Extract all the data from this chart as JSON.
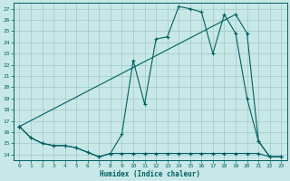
{
  "xlabel": "Humidex (Indice chaleur)",
  "bg_color": "#c8e8e8",
  "grid_color": "#a0c8c8",
  "line_color": "#006060",
  "xlim_min": -0.5,
  "xlim_max": 23.5,
  "ylim_min": 13.5,
  "ylim_max": 27.5,
  "line1_x": [
    0,
    1,
    2,
    3,
    4,
    5,
    6,
    7,
    8,
    9,
    10,
    11,
    12,
    13,
    14,
    15,
    16,
    17,
    18,
    19,
    20,
    21,
    22,
    23
  ],
  "line1_y": [
    16.5,
    15.5,
    15.0,
    14.8,
    14.8,
    14.6,
    14.2,
    13.8,
    14.1,
    15.8,
    22.4,
    18.5,
    24.3,
    24.5,
    27.2,
    27.0,
    26.7,
    23.0,
    26.5,
    24.8,
    19.0,
    15.2,
    13.8,
    13.8
  ],
  "line2_x": [
    0,
    1,
    2,
    3,
    4,
    5,
    6,
    7,
    8,
    9,
    10,
    11,
    12,
    13,
    14,
    15,
    16,
    17,
    18,
    19,
    20,
    21,
    22,
    23
  ],
  "line2_y": [
    16.5,
    15.5,
    15.0,
    14.8,
    14.8,
    14.6,
    14.2,
    13.8,
    14.1,
    14.1,
    14.1,
    14.1,
    14.1,
    14.1,
    14.1,
    14.1,
    14.1,
    14.1,
    14.1,
    14.1,
    14.1,
    14.1,
    13.8,
    13.8
  ],
  "line3_x": [
    0,
    19,
    20,
    21,
    22,
    23
  ],
  "line3_y": [
    16.5,
    26.5,
    24.8,
    15.2,
    13.8,
    13.8
  ],
  "yticks": [
    14,
    15,
    16,
    17,
    18,
    19,
    20,
    21,
    22,
    23,
    24,
    25,
    26,
    27
  ],
  "xticks": [
    0,
    1,
    2,
    3,
    4,
    5,
    6,
    7,
    8,
    9,
    10,
    11,
    12,
    13,
    14,
    15,
    16,
    17,
    18,
    19,
    20,
    21,
    22,
    23
  ]
}
